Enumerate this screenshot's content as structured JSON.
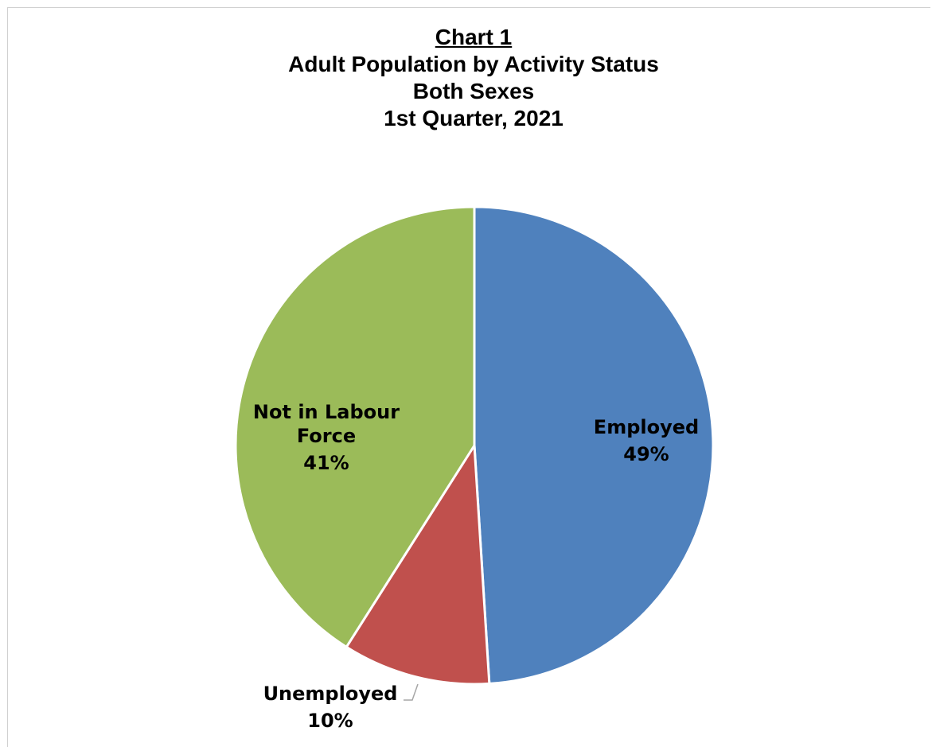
{
  "chart_data": {
    "type": "pie",
    "title": "Chart 1",
    "subtitle_lines": [
      "Adult Population by Activity Status",
      "Both Sexes",
      "1st Quarter, 2021"
    ],
    "slices": [
      {
        "name": "Employed",
        "value": 49,
        "label_value": "49%",
        "color": "#4F81BD"
      },
      {
        "name": "Unemployed",
        "value": 10,
        "label_value": "10%",
        "color": "#C0504D"
      },
      {
        "name": "Not in Labour Force",
        "value": 41,
        "label_value": "41%",
        "color": "#9BBB59"
      }
    ],
    "start_angle": "12 o'clock",
    "direction": "clockwise",
    "legend": "none"
  }
}
